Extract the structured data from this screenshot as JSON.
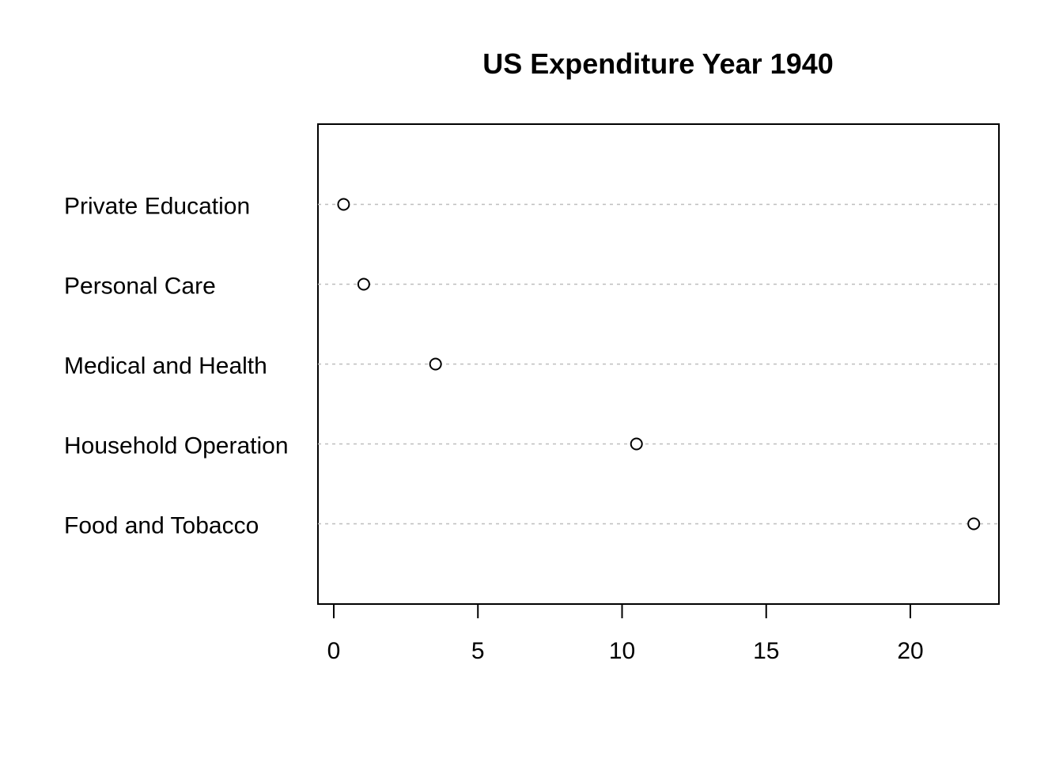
{
  "chart_data": {
    "type": "scatter",
    "subtype": "dotchart",
    "title": "US Expenditure Year 1940",
    "xlabel": "",
    "ylabel": "",
    "categories": [
      "Private Education",
      "Personal Care",
      "Medical and Health",
      "Household Operation",
      "Food and Tobacco"
    ],
    "values": [
      0.341,
      1.04,
      3.53,
      10.5,
      22.2
    ],
    "x_ticks": [
      "0",
      "5",
      "10",
      "15",
      "20"
    ],
    "xlim": [
      0,
      22.2
    ],
    "grid": "dotted horizontal guide lines",
    "marker": "open circle"
  }
}
